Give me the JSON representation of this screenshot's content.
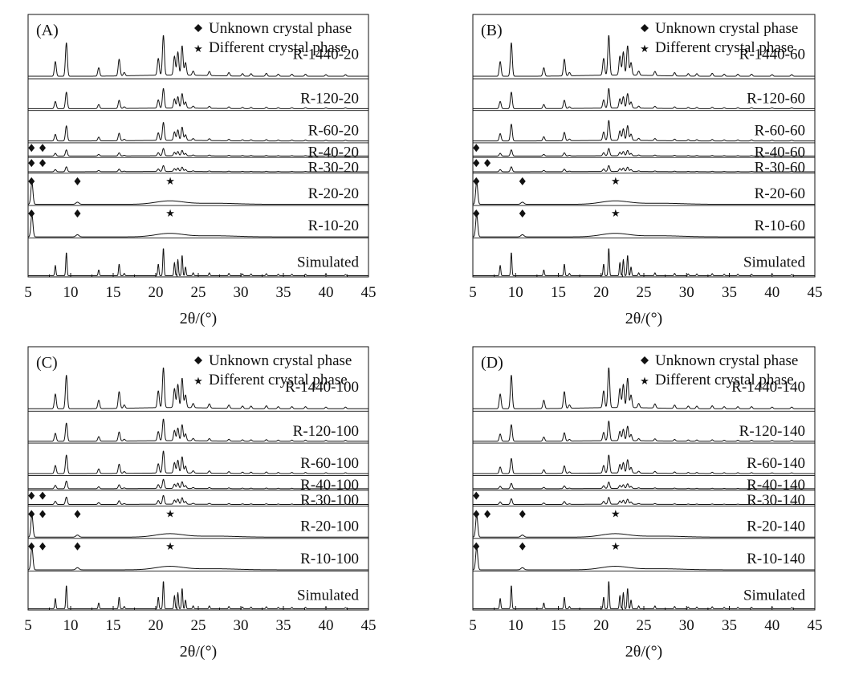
{
  "chart_data": [
    {
      "type": "line",
      "panel_label": "(A)",
      "xlabel": "2θ/(°)",
      "xlim": [
        5,
        45
      ],
      "xticks": [
        5,
        10,
        15,
        20,
        25,
        30,
        35,
        40,
        45
      ],
      "legend": {
        "position": "top-right",
        "diamond": "Unknown crystal phase",
        "star": "Different crystal phase"
      },
      "series": [
        {
          "name": "R-1440-20",
          "profile": "crystalline",
          "peak_scale": 1.0,
          "diamonds": [],
          "stars": []
        },
        {
          "name": "R-120-20",
          "profile": "crystalline",
          "peak_scale": 1.0,
          "diamonds": [],
          "stars": []
        },
        {
          "name": "R-60-20",
          "profile": "crystalline",
          "peak_scale": 0.9,
          "diamonds": [],
          "stars": []
        },
        {
          "name": "R-40-20",
          "profile": "crystalline",
          "peak_scale": 0.8,
          "diamonds": [
            5.4,
            6.7
          ],
          "stars": []
        },
        {
          "name": "R-30-20",
          "profile": "crystalline",
          "peak_scale": 0.6,
          "diamonds": [
            5.4,
            6.7
          ],
          "stars": []
        },
        {
          "name": "R-20-20",
          "profile": "amorphous",
          "peak_scale": 1.0,
          "diamonds": [
            5.4,
            10.8
          ],
          "stars": [
            21.7
          ]
        },
        {
          "name": "R-10-20",
          "profile": "amorphous",
          "peak_scale": 1.0,
          "diamonds": [
            5.4,
            10.8
          ],
          "stars": [
            21.7
          ]
        },
        {
          "name": "Simulated",
          "profile": "simulated",
          "peak_scale": 1.0,
          "diamonds": [],
          "stars": []
        }
      ]
    },
    {
      "type": "line",
      "panel_label": "(B)",
      "xlabel": "2θ/(°)",
      "xlim": [
        5,
        45
      ],
      "xticks": [
        5,
        10,
        15,
        20,
        25,
        30,
        35,
        40,
        45
      ],
      "legend": {
        "position": "top-right",
        "diamond": "Unknown crystal phase",
        "star": "Different crystal phase"
      },
      "series": [
        {
          "name": "R-1440-60",
          "profile": "crystalline",
          "peak_scale": 1.0,
          "diamonds": [],
          "stars": []
        },
        {
          "name": "R-120-60",
          "profile": "crystalline",
          "peak_scale": 1.0,
          "diamonds": [],
          "stars": []
        },
        {
          "name": "R-60-60",
          "profile": "crystalline",
          "peak_scale": 1.0,
          "diamonds": [],
          "stars": []
        },
        {
          "name": "R-40-60",
          "profile": "crystalline",
          "peak_scale": 0.8,
          "diamonds": [
            5.4
          ],
          "stars": []
        },
        {
          "name": "R-30-60",
          "profile": "crystalline",
          "peak_scale": 0.6,
          "diamonds": [
            5.4,
            6.7
          ],
          "stars": []
        },
        {
          "name": "R-20-60",
          "profile": "amorphous",
          "peak_scale": 1.0,
          "diamonds": [
            5.4,
            10.8
          ],
          "stars": [
            21.7
          ]
        },
        {
          "name": "R-10-60",
          "profile": "amorphous",
          "peak_scale": 1.0,
          "diamonds": [
            5.4,
            10.8
          ],
          "stars": [
            21.7
          ]
        },
        {
          "name": "Simulated",
          "profile": "simulated",
          "peak_scale": 1.0,
          "diamonds": [],
          "stars": []
        }
      ]
    },
    {
      "type": "line",
      "panel_label": "(C)",
      "xlabel": "2θ/(°)",
      "xlim": [
        5,
        45
      ],
      "xticks": [
        5,
        10,
        15,
        20,
        25,
        30,
        35,
        40,
        45
      ],
      "legend": {
        "position": "top-right",
        "diamond": "Unknown crystal phase",
        "star": "Different crystal phase"
      },
      "series": [
        {
          "name": "R-1440-100",
          "profile": "crystalline",
          "peak_scale": 1.0,
          "diamonds": [],
          "stars": []
        },
        {
          "name": "R-120-100",
          "profile": "crystalline",
          "peak_scale": 1.1,
          "diamonds": [],
          "stars": []
        },
        {
          "name": "R-60-100",
          "profile": "crystalline",
          "peak_scale": 1.1,
          "diamonds": [],
          "stars": []
        },
        {
          "name": "R-40-100",
          "profile": "crystalline",
          "peak_scale": 1.0,
          "diamonds": [],
          "stars": []
        },
        {
          "name": "R-30-100",
          "profile": "crystalline",
          "peak_scale": 0.9,
          "diamonds": [
            5.4,
            6.7
          ],
          "stars": []
        },
        {
          "name": "R-20-100",
          "profile": "amorphous",
          "peak_scale": 0.8,
          "diamonds": [
            5.4,
            6.7,
            10.8
          ],
          "stars": [
            21.7
          ]
        },
        {
          "name": "R-10-100",
          "profile": "amorphous",
          "peak_scale": 0.8,
          "diamonds": [
            5.4,
            6.7,
            10.8
          ],
          "stars": [
            21.7
          ]
        },
        {
          "name": "Simulated",
          "profile": "simulated",
          "peak_scale": 1.0,
          "diamonds": [],
          "stars": []
        }
      ]
    },
    {
      "type": "line",
      "panel_label": "(D)",
      "xlabel": "2θ/(°)",
      "xlim": [
        5,
        45
      ],
      "xticks": [
        5,
        10,
        15,
        20,
        25,
        30,
        35,
        40,
        45
      ],
      "legend": {
        "position": "top-right",
        "diamond": "Unknown crystal phase",
        "star": "Different crystal phase"
      },
      "series": [
        {
          "name": "R-1440-140",
          "profile": "crystalline",
          "peak_scale": 1.0,
          "diamonds": [],
          "stars": []
        },
        {
          "name": "R-120-140",
          "profile": "crystalline",
          "peak_scale": 1.0,
          "diamonds": [],
          "stars": []
        },
        {
          "name": "R-60-140",
          "profile": "crystalline",
          "peak_scale": 0.9,
          "diamonds": [],
          "stars": []
        },
        {
          "name": "R-40-140",
          "profile": "crystalline",
          "peak_scale": 0.7,
          "diamonds": [],
          "stars": []
        },
        {
          "name": "R-30-140",
          "profile": "crystalline",
          "peak_scale": 0.7,
          "diamonds": [
            5.4
          ],
          "stars": []
        },
        {
          "name": "R-20-140",
          "profile": "amorphous",
          "peak_scale": 0.9,
          "diamonds": [
            5.4,
            6.7,
            10.8
          ],
          "stars": [
            21.7
          ]
        },
        {
          "name": "R-10-140",
          "profile": "amorphous",
          "peak_scale": 0.9,
          "diamonds": [
            5.4,
            10.8
          ],
          "stars": [
            21.7
          ]
        },
        {
          "name": "Simulated",
          "profile": "simulated",
          "peak_scale": 1.0,
          "diamonds": [],
          "stars": []
        }
      ]
    }
  ]
}
